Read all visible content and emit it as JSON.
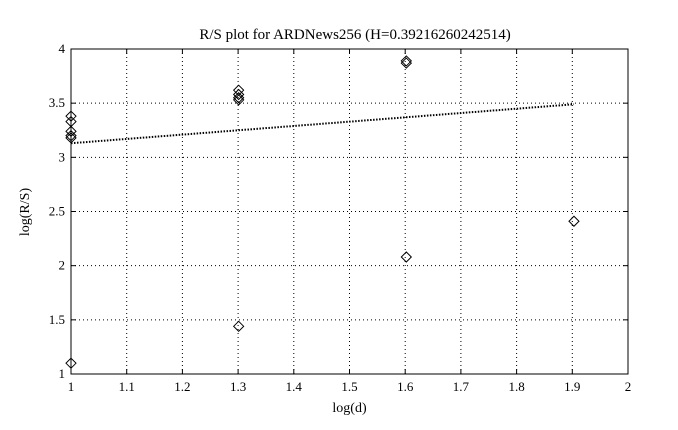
{
  "chart_data": {
    "type": "scatter",
    "title": "R/S plot for ARDNews256 (H=0.39216260242514)",
    "xlabel": "log(d)",
    "ylabel": "log(R/S)",
    "xlim": [
      1,
      2
    ],
    "ylim": [
      1,
      4
    ],
    "xticks": [
      1,
      1.1,
      1.2,
      1.3,
      1.4,
      1.5,
      1.6,
      1.7,
      1.8,
      1.9,
      2
    ],
    "xtick_labels": [
      "1",
      "1.1",
      "1.2",
      "1.3",
      "1.4",
      "1.5",
      "1.6",
      "1.7",
      "1.8",
      "1.9",
      "2"
    ],
    "yticks": [
      1,
      1.5,
      2,
      2.5,
      3,
      3.5,
      4
    ],
    "ytick_labels": [
      "1",
      "1.5",
      "2",
      "2.5",
      "3",
      "3.5",
      "4"
    ],
    "grid": true,
    "marker": "diamond",
    "points": [
      {
        "x": 1.0,
        "y": 3.38
      },
      {
        "x": 1.0,
        "y": 3.33
      },
      {
        "x": 1.0,
        "y": 3.24
      },
      {
        "x": 1.0,
        "y": 3.2
      },
      {
        "x": 1.0,
        "y": 3.18
      },
      {
        "x": 1.0,
        "y": 1.1
      },
      {
        "x": 1.301,
        "y": 3.62
      },
      {
        "x": 1.301,
        "y": 3.58
      },
      {
        "x": 1.301,
        "y": 3.55
      },
      {
        "x": 1.301,
        "y": 3.53
      },
      {
        "x": 1.301,
        "y": 1.44
      },
      {
        "x": 1.602,
        "y": 3.89
      },
      {
        "x": 1.602,
        "y": 3.87
      },
      {
        "x": 1.602,
        "y": 2.08
      },
      {
        "x": 1.903,
        "y": 2.41
      }
    ],
    "fit_line": {
      "x": [
        1.0,
        1.903
      ],
      "y": [
        3.13,
        3.49
      ]
    }
  }
}
